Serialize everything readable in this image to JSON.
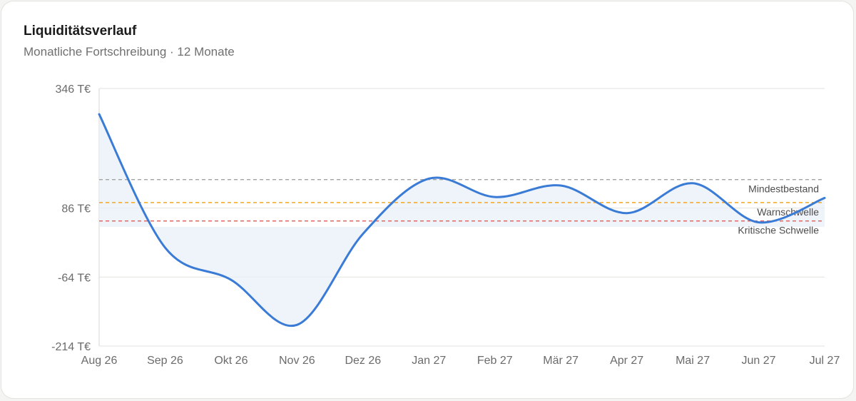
{
  "header": {
    "title": "Liquiditätsverlauf",
    "subtitle": "Monatliche Fortschreibung · 12 Monate"
  },
  "chart_data": {
    "type": "line",
    "title": "Liquiditätsverlauf",
    "subtitle": "Monatliche Fortschreibung · 12 Monate",
    "unit": "T€",
    "categories": [
      "Aug 26",
      "Sep 26",
      "Okt 26",
      "Nov 26",
      "Dez 26",
      "Jan 27",
      "Feb 27",
      "Mär 27",
      "Apr 27",
      "Mai 27",
      "Jun 27",
      "Jul 27"
    ],
    "series": [
      {
        "values": [
          290,
          0,
          -70,
          -168,
          30,
          150,
          110,
          135,
          75,
          140,
          55,
          108
        ],
        "color": "#3a7bd5"
      }
    ],
    "ylim": [
      -214,
      346
    ],
    "yticks": [
      {
        "value": 346,
        "label": "346 T€"
      },
      {
        "value": 86,
        "label": "86 T€"
      },
      {
        "value": -64,
        "label": "-64 T€"
      },
      {
        "value": -214,
        "label": "-214 T€"
      }
    ],
    "area_baseline": 45,
    "reference_lines": [
      {
        "name": "Mindestbestand",
        "value": 148,
        "color": "#a3a3a3"
      },
      {
        "name": "Warnschwelle",
        "value": 98,
        "color": "#f5a623"
      },
      {
        "name": "Kritische Schwelle",
        "value": 58,
        "color": "#e05a5a"
      }
    ],
    "grid": "horizontal",
    "legend": "none"
  }
}
